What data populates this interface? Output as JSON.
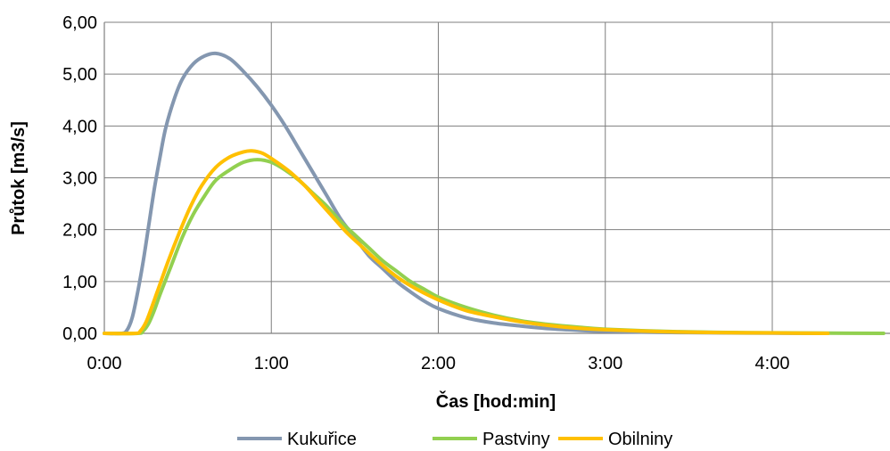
{
  "chart_data": {
    "type": "line",
    "title": "",
    "xlabel": "Čas [hod:min]",
    "ylabel": "Průtok [m3/s]",
    "xlim": [
      0,
      280
    ],
    "ylim": [
      0,
      6
    ],
    "x_unit": "min",
    "x_ticks": [
      {
        "value": 0,
        "label": "0:00"
      },
      {
        "value": 60,
        "label": "1:00"
      },
      {
        "value": 120,
        "label": "2:00"
      },
      {
        "value": 180,
        "label": "3:00"
      },
      {
        "value": 240,
        "label": "4:00"
      }
    ],
    "y_ticks": [
      {
        "value": 0,
        "label": "0,00"
      },
      {
        "value": 1,
        "label": "1,00"
      },
      {
        "value": 2,
        "label": "2,00"
      },
      {
        "value": 3,
        "label": "3,00"
      },
      {
        "value": 4,
        "label": "4,00"
      },
      {
        "value": 5,
        "label": "5,00"
      },
      {
        "value": 6,
        "label": "6,00"
      }
    ],
    "grid": true,
    "legend_position": "bottom",
    "series": [
      {
        "name": "Kukuřice",
        "color": "#8497b0",
        "points": [
          [
            0,
            0
          ],
          [
            6,
            0
          ],
          [
            8,
            0.05
          ],
          [
            10,
            0.3
          ],
          [
            12,
            0.8
          ],
          [
            14,
            1.4
          ],
          [
            16,
            2.1
          ],
          [
            18,
            2.8
          ],
          [
            20,
            3.4
          ],
          [
            22,
            3.95
          ],
          [
            25,
            4.5
          ],
          [
            28,
            4.9
          ],
          [
            32,
            5.2
          ],
          [
            36,
            5.35
          ],
          [
            40,
            5.4
          ],
          [
            45,
            5.3
          ],
          [
            50,
            5.05
          ],
          [
            55,
            4.75
          ],
          [
            60,
            4.4
          ],
          [
            65,
            4.0
          ],
          [
            70,
            3.55
          ],
          [
            75,
            3.1
          ],
          [
            80,
            2.65
          ],
          [
            85,
            2.2
          ],
          [
            90,
            1.85
          ],
          [
            95,
            1.5
          ],
          [
            100,
            1.25
          ],
          [
            105,
            1.0
          ],
          [
            110,
            0.8
          ],
          [
            115,
            0.62
          ],
          [
            120,
            0.48
          ],
          [
            130,
            0.3
          ],
          [
            140,
            0.2
          ],
          [
            150,
            0.14
          ],
          [
            160,
            0.09
          ],
          [
            170,
            0.06
          ],
          [
            180,
            0.04
          ],
          [
            200,
            0.02
          ],
          [
            220,
            0.01
          ],
          [
            240,
            0.005
          ],
          [
            260,
            0.0
          ]
        ]
      },
      {
        "name": "Pastviny",
        "color": "#92d050",
        "points": [
          [
            0,
            0
          ],
          [
            12,
            0
          ],
          [
            14,
            0.05
          ],
          [
            16,
            0.2
          ],
          [
            18,
            0.45
          ],
          [
            20,
            0.75
          ],
          [
            24,
            1.3
          ],
          [
            28,
            1.85
          ],
          [
            32,
            2.3
          ],
          [
            36,
            2.65
          ],
          [
            40,
            2.95
          ],
          [
            45,
            3.15
          ],
          [
            50,
            3.3
          ],
          [
            55,
            3.35
          ],
          [
            60,
            3.3
          ],
          [
            65,
            3.15
          ],
          [
            70,
            2.95
          ],
          [
            75,
            2.7
          ],
          [
            80,
            2.45
          ],
          [
            85,
            2.15
          ],
          [
            90,
            1.9
          ],
          [
            95,
            1.65
          ],
          [
            100,
            1.4
          ],
          [
            105,
            1.2
          ],
          [
            110,
            1.0
          ],
          [
            115,
            0.85
          ],
          [
            120,
            0.7
          ],
          [
            130,
            0.5
          ],
          [
            140,
            0.35
          ],
          [
            150,
            0.24
          ],
          [
            160,
            0.17
          ],
          [
            170,
            0.12
          ],
          [
            180,
            0.08
          ],
          [
            200,
            0.04
          ],
          [
            220,
            0.02
          ],
          [
            240,
            0.01
          ],
          [
            260,
            0.005
          ],
          [
            280,
            0.0
          ]
        ]
      },
      {
        "name": "Obilniny",
        "color": "#ffc000",
        "points": [
          [
            0,
            0
          ],
          [
            11,
            0
          ],
          [
            13,
            0.05
          ],
          [
            15,
            0.22
          ],
          [
            17,
            0.5
          ],
          [
            19,
            0.8
          ],
          [
            23,
            1.4
          ],
          [
            27,
            1.95
          ],
          [
            31,
            2.45
          ],
          [
            35,
            2.85
          ],
          [
            40,
            3.2
          ],
          [
            45,
            3.4
          ],
          [
            50,
            3.5
          ],
          [
            53,
            3.52
          ],
          [
            57,
            3.47
          ],
          [
            62,
            3.3
          ],
          [
            67,
            3.1
          ],
          [
            72,
            2.85
          ],
          [
            77,
            2.55
          ],
          [
            82,
            2.25
          ],
          [
            87,
            1.95
          ],
          [
            92,
            1.7
          ],
          [
            97,
            1.45
          ],
          [
            102,
            1.22
          ],
          [
            107,
            1.02
          ],
          [
            112,
            0.86
          ],
          [
            117,
            0.72
          ],
          [
            122,
            0.6
          ],
          [
            130,
            0.44
          ],
          [
            140,
            0.32
          ],
          [
            150,
            0.22
          ],
          [
            160,
            0.15
          ],
          [
            170,
            0.1
          ],
          [
            180,
            0.07
          ],
          [
            200,
            0.035
          ],
          [
            220,
            0.015
          ],
          [
            240,
            0.008
          ],
          [
            260,
            0.0
          ]
        ]
      }
    ]
  }
}
